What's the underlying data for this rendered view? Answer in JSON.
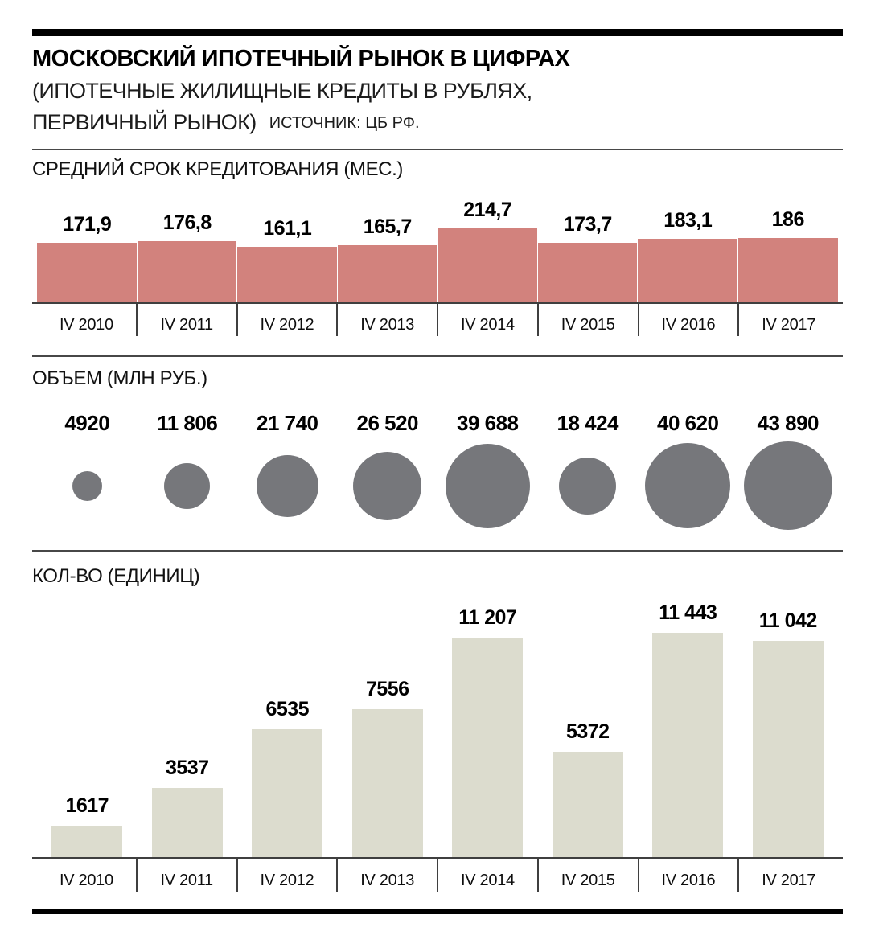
{
  "header": {
    "title": "МОСКОВСКИЙ ИПОТЕЧНЫЙ РЫНОК В ЦИФРАХ",
    "subtitle_line1": "(ИПОТЕЧНЫЕ ЖИЛИЩНЫЕ КРЕДИТЫ В РУБЛЯХ,",
    "subtitle_line2": "ПЕРВИЧНЫЙ РЫНОК)",
    "source": "ИСТОЧНИК: ЦБ РФ."
  },
  "colors": {
    "term_bar": "#d2827d",
    "volume_circle": "#76777b",
    "count_bar": "#dcdcce",
    "rule_black": "#000000",
    "axis_line": "#3f3f3f"
  },
  "chart_data": [
    {
      "type": "bar",
      "id": "term",
      "title": "СРЕДНИЙ СРОК КРЕДИТОВАНИЯ (МЕС.)",
      "categories": [
        "IV 2010",
        "IV 2011",
        "IV 2012",
        "IV 2013",
        "IV 2014",
        "IV 2015",
        "IV 2016",
        "IV 2017"
      ],
      "values": [
        171.9,
        176.8,
        161.1,
        165.7,
        214.7,
        173.7,
        183.1,
        186
      ],
      "value_labels": [
        "171,9",
        "176,8",
        "161,1",
        "165,7",
        "214,7",
        "173,7",
        "183,1",
        "186"
      ],
      "bar_color": "#d2827d",
      "layout": "contiguous-columns",
      "ylim": [
        0,
        320
      ],
      "grid": false,
      "legend": false
    },
    {
      "type": "bubble",
      "id": "volume",
      "title": "ОБЪЕМ (МЛН РУБ.)",
      "categories": [
        "IV 2010",
        "IV 2011",
        "IV 2012",
        "IV 2013",
        "IV 2014",
        "IV 2015",
        "IV 2016",
        "IV 2017"
      ],
      "values": [
        4920,
        11806,
        21740,
        26520,
        39688,
        18424,
        40620,
        43890
      ],
      "value_labels": [
        "4920",
        "11 806",
        "21 740",
        "26 520",
        "39 688",
        "18 424",
        "40 620",
        "43 890"
      ],
      "circle_color": "#76777b",
      "sizing": "area-proportional",
      "legend": false
    },
    {
      "type": "bar",
      "id": "count",
      "title": "КОЛ-ВО (ЕДИНИЦ)",
      "categories": [
        "IV 2010",
        "IV 2011",
        "IV 2012",
        "IV 2013",
        "IV 2014",
        "IV 2015",
        "IV 2016",
        "IV 2017"
      ],
      "values": [
        1617,
        3537,
        6535,
        7556,
        11207,
        5372,
        11443,
        11042
      ],
      "value_labels": [
        "1617",
        "3537",
        "6535",
        "7556",
        "11 207",
        "5372",
        "11 443",
        "11 042"
      ],
      "bar_color": "#dcdcce",
      "layout": "separated-columns",
      "ylim": [
        0,
        13000
      ],
      "grid": false,
      "legend": false
    }
  ]
}
